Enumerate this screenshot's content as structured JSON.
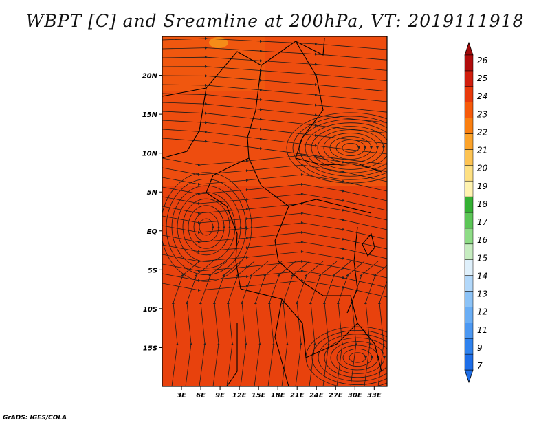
{
  "title": "WBPT [C] and Sreamline at 200hPa, VT: 2019111918",
  "credit": "GrADS: IGES/COLA",
  "map": {
    "lat_ticks": [
      "20N",
      "15N",
      "10N",
      "5N",
      "EQ",
      "5S",
      "10S",
      "15S"
    ],
    "lat_values": [
      20,
      15,
      10,
      5,
      0,
      -5,
      -10,
      -15
    ],
    "lon_ticks": [
      "3E",
      "6E",
      "9E",
      "12E",
      "15E",
      "18E",
      "21E",
      "24E",
      "27E",
      "30E",
      "33E"
    ],
    "lon_values": [
      3,
      6,
      9,
      12,
      15,
      18,
      21,
      24,
      27,
      30,
      33
    ],
    "lon_range": [
      0,
      35
    ],
    "lat_range": [
      -20,
      25
    ]
  },
  "colorbar": {
    "labels": [
      "7",
      "9",
      "11",
      "12",
      "13",
      "14",
      "15",
      "16",
      "17",
      "18",
      "19",
      "20",
      "21",
      "22",
      "23",
      "24",
      "25",
      "26"
    ],
    "colors": [
      "#1e6ee8",
      "#2f82ee",
      "#4c98f2",
      "#6aaef5",
      "#8cc3f7",
      "#b2d8fa",
      "#dff0fb",
      "#c6ecc0",
      "#8edc86",
      "#5cc657",
      "#34b033",
      "#fff3b0",
      "#fee082",
      "#fdc353",
      "#fca32a",
      "#fa7f10",
      "#f65a0a",
      "#e83a0c",
      "#d01e0e",
      "#b00c0c"
    ],
    "end_low_color": "#1e6ee8",
    "end_high_color": "#a00a0a"
  },
  "colors": {
    "field_main": "#ee4d0f",
    "field_dark": "#e33b0c",
    "field_light": "#f2620f"
  }
}
